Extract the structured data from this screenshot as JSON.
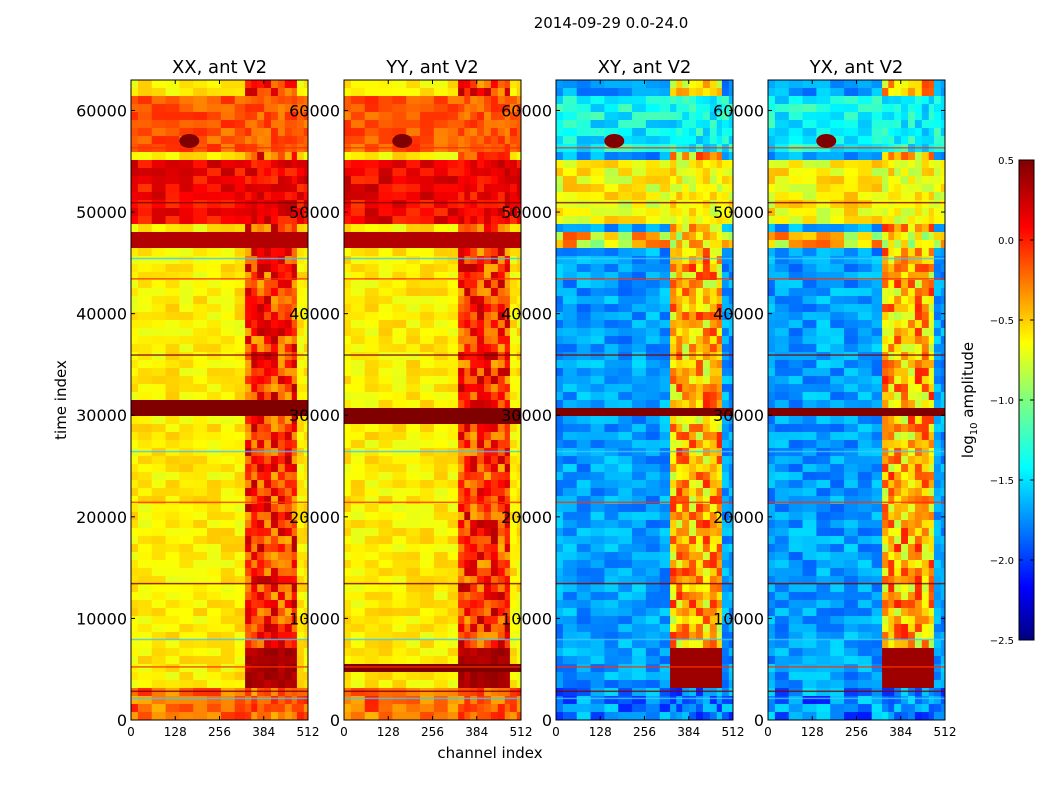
{
  "chart_data": {
    "type": "heatmap",
    "title": "2014-09-29 0.0-24.0",
    "xlabel": "channel index",
    "ylabel": "time index",
    "xlim": [
      0,
      512
    ],
    "ylim": [
      0,
      63000
    ],
    "xticks": [
      "0",
      "128",
      "256",
      "384",
      "512"
    ],
    "yticks": [
      "0",
      "10000",
      "20000",
      "30000",
      "40000",
      "50000",
      "60000"
    ],
    "panels": [
      {
        "title": "XX, ant V2",
        "kind": "auto"
      },
      {
        "title": "YY, ant V2",
        "kind": "auto"
      },
      {
        "title": "XY, ant V2",
        "kind": "cross"
      },
      {
        "title": "YX, ant V2",
        "kind": "cross"
      }
    ],
    "colorbar": {
      "label": "log10 amplitude",
      "label_main": "log",
      "label_sub": "10",
      "label_tail": " amplitude",
      "range": [
        -2.5,
        0.5
      ],
      "ticks": [
        "0.5",
        "0.0",
        "−0.5",
        "−1.0",
        "−1.5",
        "−2.0",
        "−2.5"
      ],
      "colormap": "jet"
    },
    "features": {
      "saturated_bands": [
        {
          "panel": "XX",
          "start": 30000,
          "end": 32000
        },
        {
          "panel": "XX",
          "start": 19700,
          "end": 20400
        },
        {
          "panel": "YY",
          "start": 29800,
          "end": 31200
        },
        {
          "panel": "YY",
          "start": 5200,
          "end": 5900
        },
        {
          "panel": "XY",
          "start": 30000,
          "end": 31200
        },
        {
          "panel": "YX",
          "start": 30000,
          "end": 31200
        }
      ],
      "high_rfi_channels": [
        330,
        480
      ]
    }
  }
}
